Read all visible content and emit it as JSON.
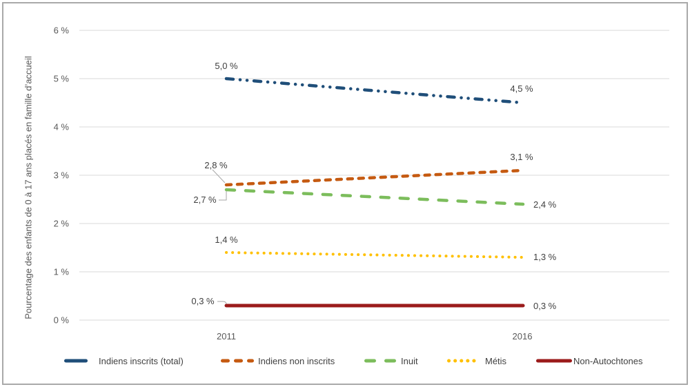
{
  "figure": {
    "background": "#FFFFFF",
    "border_color": "#A9A9A9",
    "grid_color": "#D9D9D9",
    "axis_text_color": "#595959",
    "data_label_color": "#3F3F3F"
  },
  "chart_data": {
    "type": "line",
    "title": "",
    "xlabel": "",
    "ylabel": "Pourcentage des enfants de 0 à 17 ans placés en famille d’accueil",
    "x": [
      2011,
      2016
    ],
    "x_tick_labels": [
      "2011",
      "2016"
    ],
    "y_ticks": [
      0,
      1,
      2,
      3,
      4,
      5,
      6
    ],
    "y_tick_labels": [
      "0 %",
      "1 %",
      "2 %",
      "3 %",
      "4 %",
      "5 %",
      "6 %"
    ],
    "ylim": [
      0,
      6
    ],
    "grid": true,
    "legend_position": "bottom",
    "series": [
      {
        "name": "Indiens inscrits (total)",
        "color": "#1F4E79",
        "style": "dash-dot-dot",
        "values": [
          5.0,
          4.5
        ],
        "point_labels": [
          "5,0 %",
          "4,5 %"
        ]
      },
      {
        "name": "Indiens non inscrits",
        "color": "#C55A11",
        "style": "dashed",
        "values": [
          2.8,
          3.1
        ],
        "point_labels": [
          "2,8 %",
          "3,1 %"
        ]
      },
      {
        "name": "Inuit",
        "color": "#7CBD5C",
        "style": "long-dashed",
        "values": [
          2.7,
          2.4
        ],
        "point_labels": [
          "2,7 %",
          "2,4 %"
        ]
      },
      {
        "name": "Métis",
        "color": "#FFC000",
        "style": "dotted",
        "values": [
          1.4,
          1.3
        ],
        "point_labels": [
          "1,4 %",
          "1,3 %"
        ]
      },
      {
        "name": "Non-Autochtones",
        "color": "#9B1B1B",
        "style": "solid",
        "values": [
          0.3,
          0.3
        ],
        "point_labels": [
          "0,3 %",
          "0,3 %"
        ]
      }
    ]
  }
}
